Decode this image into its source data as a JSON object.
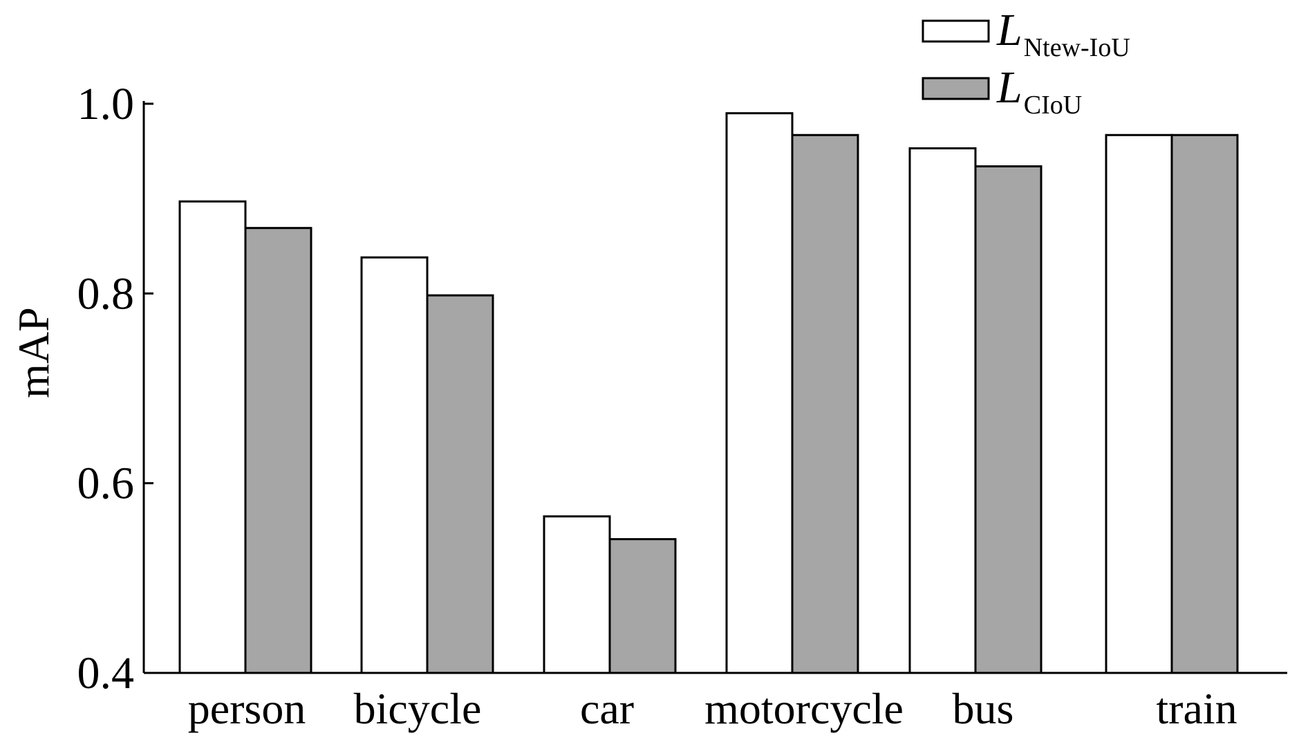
{
  "chart_data": {
    "type": "bar",
    "categories": [
      "person",
      "bicycle",
      "car",
      "motorcycle",
      "bus",
      "train"
    ],
    "series": [
      {
        "name_main": "L",
        "name_sub": "Ntew-IoU",
        "color": "#ffffff",
        "values": [
          0.897,
          0.838,
          0.565,
          0.99,
          0.953,
          0.967
        ]
      },
      {
        "name_main": "L",
        "name_sub": "CIoU",
        "color": "#a6a6a6",
        "values": [
          0.869,
          0.798,
          0.541,
          0.967,
          0.934,
          0.967
        ]
      }
    ],
    "ylabel": "mAP",
    "xlabel": "",
    "ylim": [
      0.4,
      1.0
    ],
    "yticks": [
      "0.4",
      "0.6",
      "0.8",
      "1.0"
    ],
    "legend_position": "top-right",
    "grid": false
  }
}
